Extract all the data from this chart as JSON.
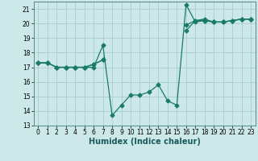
{
  "title": "",
  "xlabel": "Humidex (Indice chaleur)",
  "xlim": [
    -0.5,
    23.5
  ],
  "ylim": [
    13,
    21.5
  ],
  "yticks": [
    13,
    14,
    15,
    16,
    17,
    18,
    19,
    20,
    21
  ],
  "xticks": [
    0,
    1,
    2,
    3,
    4,
    5,
    6,
    7,
    8,
    9,
    10,
    11,
    12,
    13,
    14,
    15,
    16,
    17,
    18,
    19,
    20,
    21,
    22,
    23
  ],
  "bg_color": "#cce8e8",
  "grid_color": "#aacccc",
  "line_color": "#1a7a6a",
  "series": [
    [
      17.3,
      17.3,
      17.0,
      17.0,
      17.0,
      17.0,
      17.0,
      18.5,
      13.7,
      14.4,
      15.1,
      15.1,
      15.3,
      15.8,
      14.7,
      14.4,
      21.3,
      20.1,
      20.2,
      20.1,
      20.1,
      20.2,
      20.3,
      20.3
    ],
    [
      17.3,
      17.3,
      17.0,
      17.0,
      17.0,
      17.0,
      17.2,
      17.5,
      null,
      null,
      null,
      null,
      null,
      null,
      null,
      null,
      19.9,
      20.2,
      20.2,
      20.1,
      20.1,
      20.2,
      20.3,
      20.3
    ],
    [
      17.3,
      17.3,
      17.0,
      17.0,
      17.0,
      17.0,
      17.2,
      17.5,
      null,
      null,
      null,
      null,
      null,
      null,
      null,
      null,
      19.5,
      20.2,
      20.3,
      20.1,
      20.1,
      20.2,
      20.3,
      20.3
    ]
  ],
  "marker_size": 2.5,
  "linewidth": 0.9,
  "tick_fontsize": 5.5,
  "xlabel_fontsize": 7
}
